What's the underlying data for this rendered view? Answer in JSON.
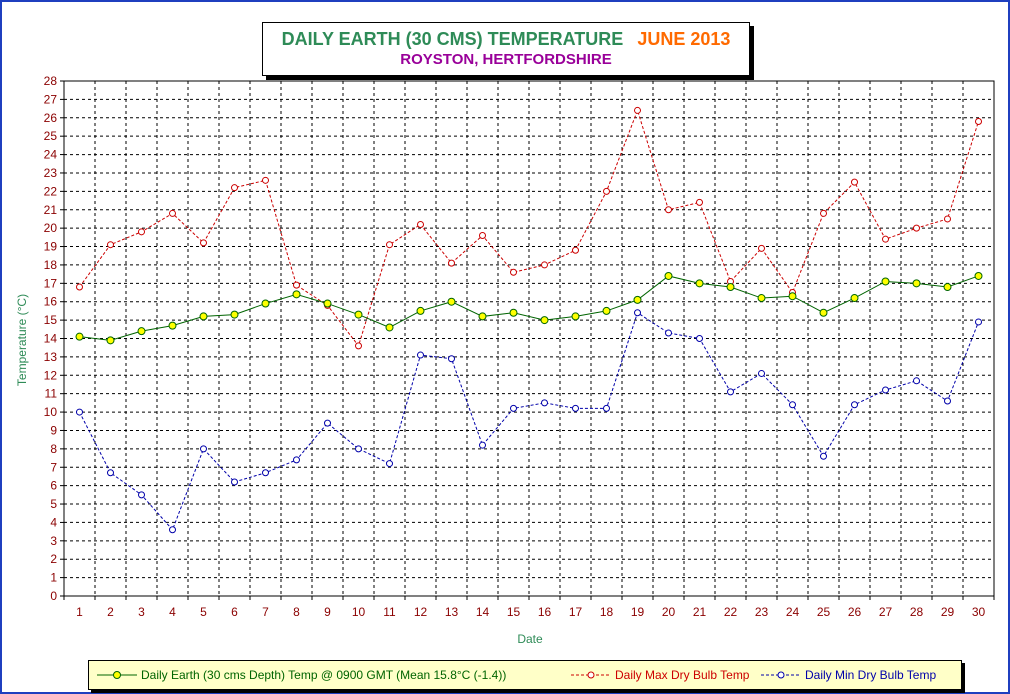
{
  "chart_data": {
    "type": "line",
    "title": "DAILY EARTH (30 CMS) TEMPERATURE",
    "title_month": "JUNE 2013",
    "subtitle": "ROYSTON, HERTFORDSHIRE",
    "xlabel": "Date",
    "ylabel": "Temperature (°C)",
    "x": [
      1,
      2,
      3,
      4,
      5,
      6,
      7,
      8,
      9,
      10,
      11,
      12,
      13,
      14,
      15,
      16,
      17,
      18,
      19,
      20,
      21,
      22,
      23,
      24,
      25,
      26,
      27,
      28,
      29,
      30
    ],
    "ylim": [
      0,
      28
    ],
    "yticks": [
      0,
      1,
      2,
      3,
      4,
      5,
      6,
      7,
      8,
      9,
      10,
      11,
      12,
      13,
      14,
      15,
      16,
      17,
      18,
      19,
      20,
      21,
      22,
      23,
      24,
      25,
      26,
      27,
      28
    ],
    "grid": true,
    "legend_position": "bottom",
    "series": [
      {
        "name": "Daily Earth (30 cms Depth) Temp @ 0900 GMT (Mean 15.8°C (-1.4))",
        "color": "#006400",
        "marker_color": "#ffff00",
        "line_style": "solid",
        "values": [
          14.1,
          13.9,
          14.4,
          14.7,
          15.2,
          15.3,
          15.9,
          16.4,
          15.9,
          15.3,
          14.6,
          15.5,
          16.0,
          15.2,
          15.4,
          15.0,
          15.2,
          15.5,
          16.1,
          17.4,
          17.0,
          16.8,
          16.2,
          16.3,
          15.4,
          16.2,
          17.1,
          17.0,
          16.8,
          17.4
        ]
      },
      {
        "name": "Daily Max Dry Bulb Temp",
        "color": "#cc0000",
        "line_style": "dashed",
        "values": [
          16.8,
          19.1,
          19.8,
          20.8,
          19.2,
          22.2,
          22.6,
          16.9,
          15.8,
          13.6,
          19.1,
          20.2,
          18.1,
          19.6,
          17.6,
          18.0,
          18.8,
          22.0,
          26.4,
          21.0,
          21.4,
          17.1,
          18.9,
          16.5,
          20.8,
          22.5,
          19.4,
          20.0,
          20.5,
          25.8
        ]
      },
      {
        "name": "Daily Min Dry Bulb Temp",
        "color": "#0000aa",
        "line_style": "dashed",
        "values": [
          10.0,
          6.7,
          5.5,
          3.6,
          8.0,
          6.2,
          6.7,
          7.4,
          9.4,
          8.0,
          7.2,
          13.1,
          12.9,
          8.2,
          10.2,
          10.5,
          10.2,
          10.2,
          15.4,
          14.3,
          14.0,
          11.1,
          12.1,
          10.4,
          7.6,
          10.4,
          11.2,
          11.7,
          10.6,
          14.9
        ]
      }
    ]
  }
}
